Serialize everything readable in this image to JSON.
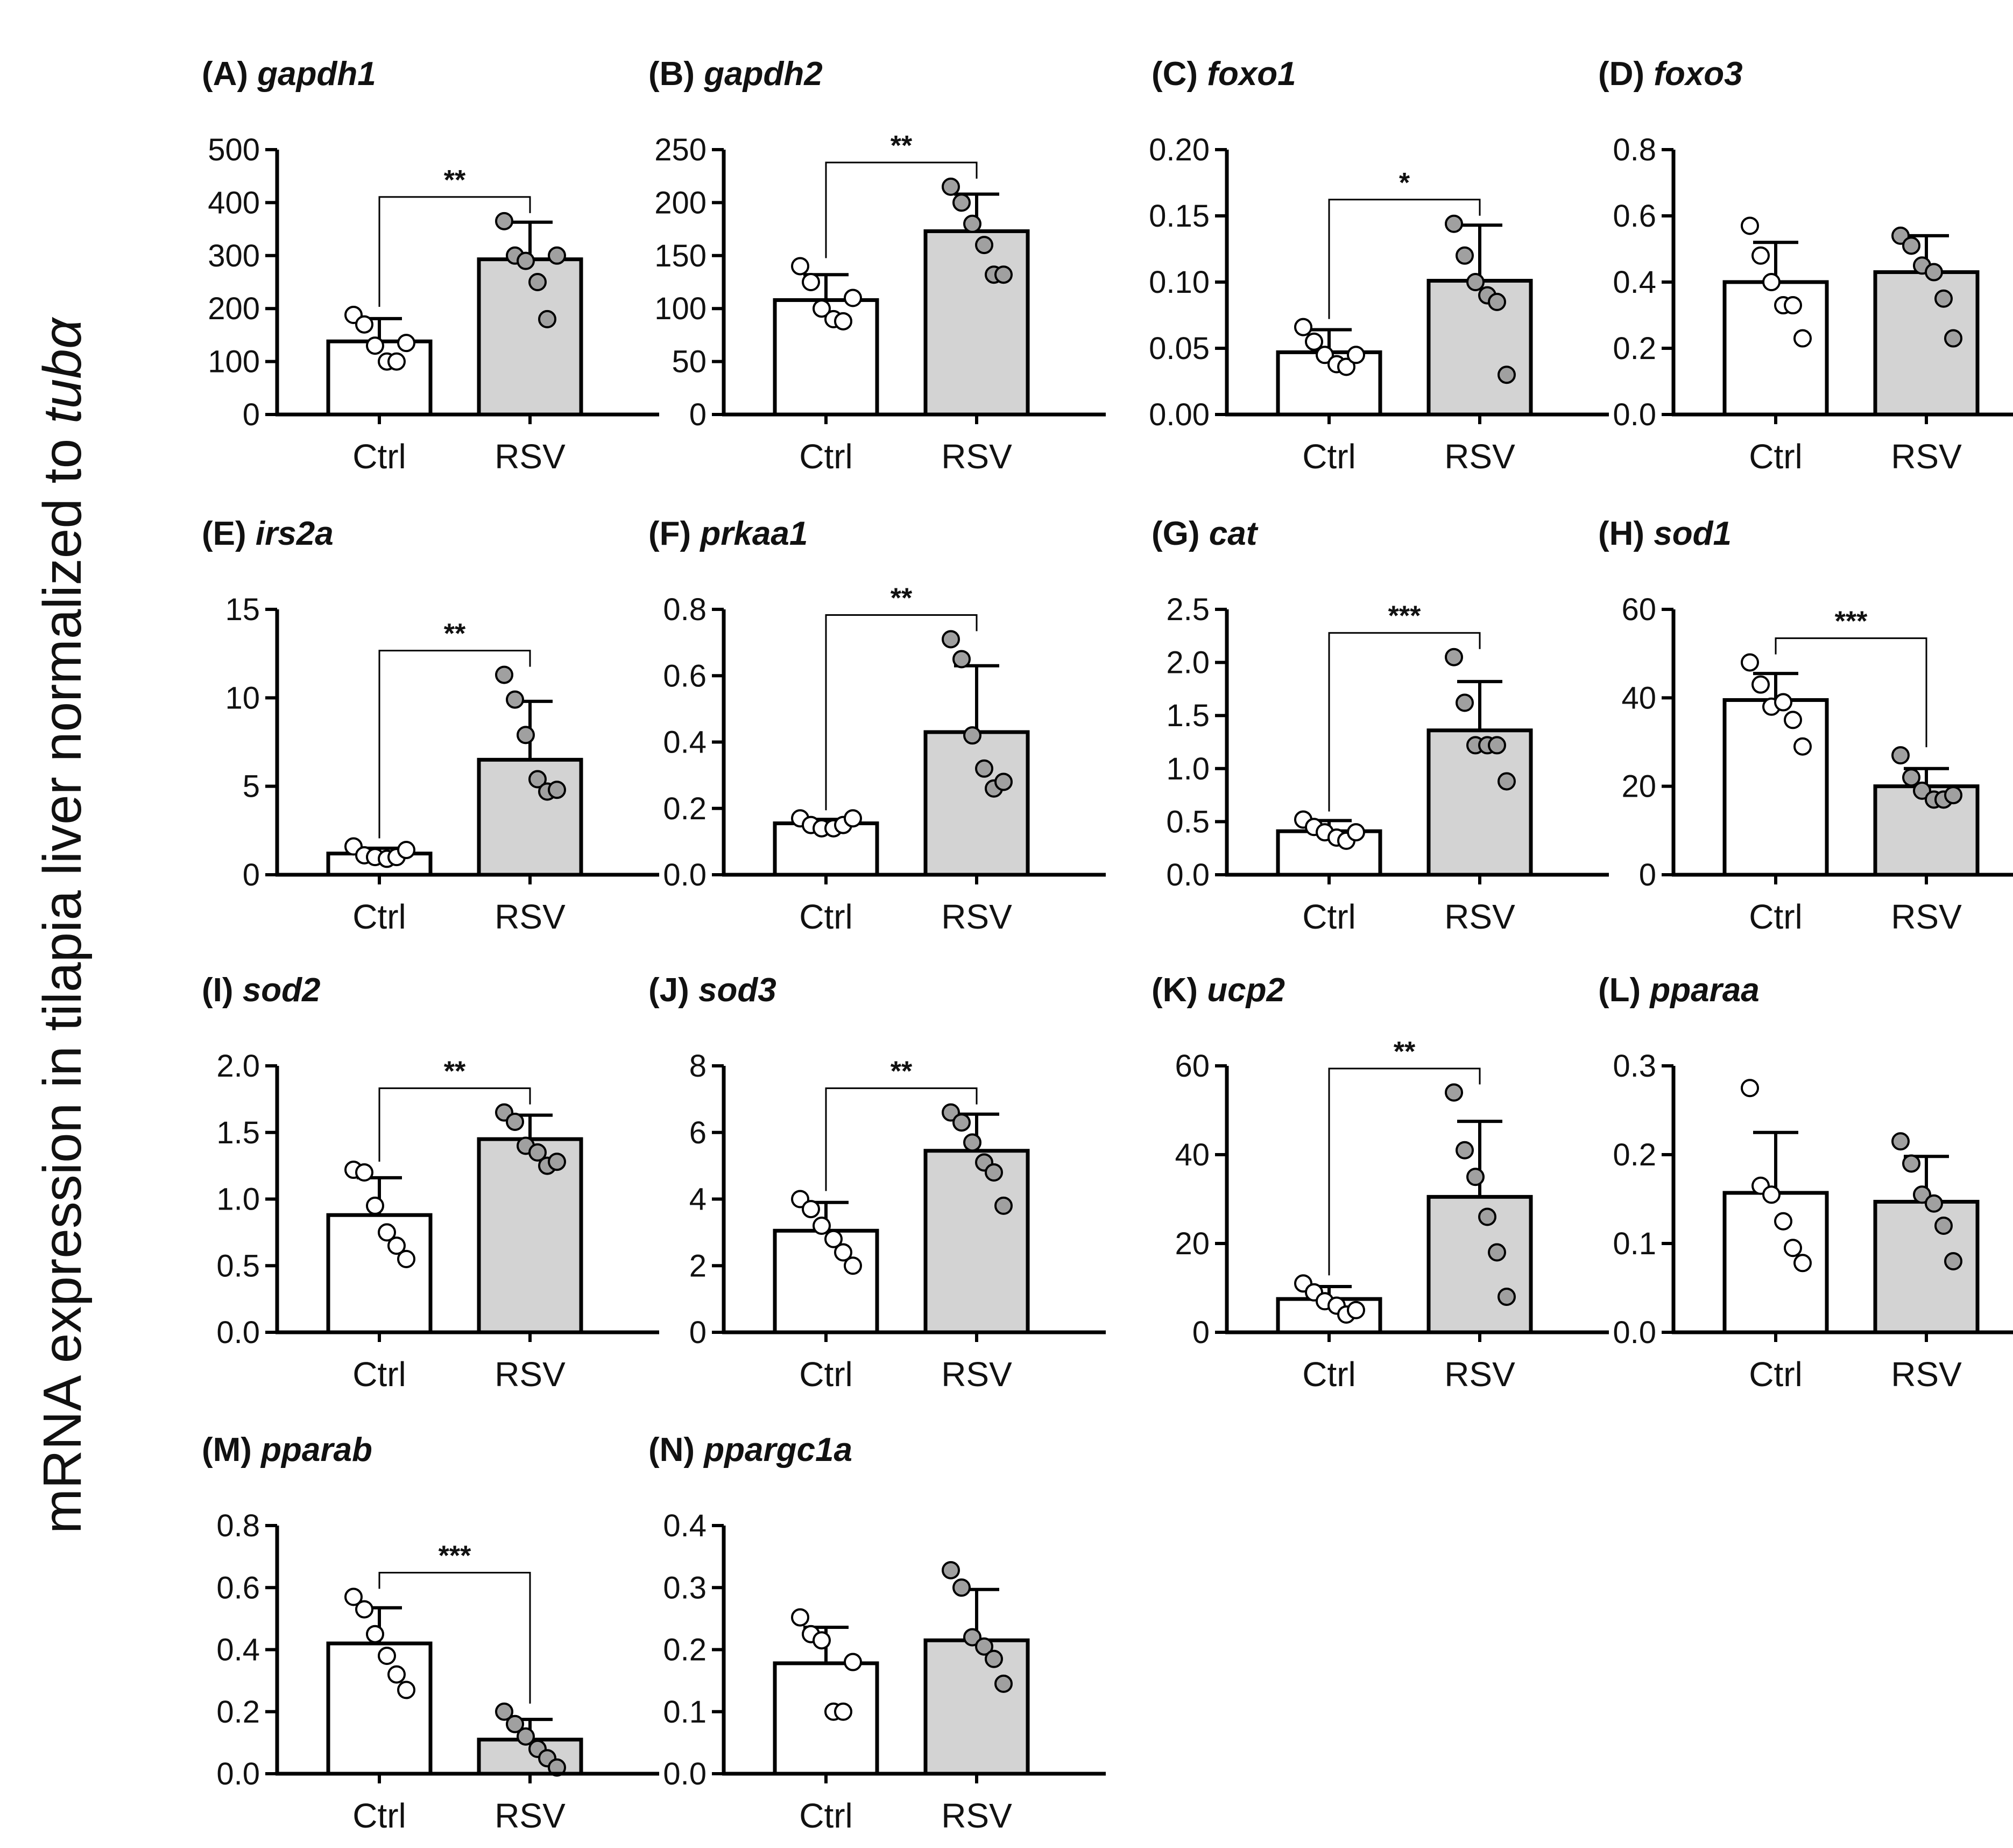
{
  "y_axis_label": {
    "prefix": "mRNA expression in tilapia liver normalized to ",
    "italic": "tubα"
  },
  "colors": {
    "ctrl_fill": "#ffffff",
    "rsv_fill": "#d3d3d3",
    "ctrl_point": "#ffffff",
    "rsv_point": "#a0a0a0"
  },
  "categories": [
    "Ctrl",
    "RSV"
  ],
  "chart_data": [
    {
      "type": "bar",
      "letter": "(A)",
      "gene": "gapdh1",
      "ylim": [
        0,
        500
      ],
      "ticks": [
        "0",
        "100",
        "200",
        "300",
        "400",
        "500"
      ],
      "categories": [
        "Ctrl",
        "RSV"
      ],
      "means": [
        138,
        293
      ],
      "sd": [
        43,
        70
      ],
      "points": [
        [
          188,
          170,
          130,
          100,
          100,
          135
        ],
        [
          365,
          300,
          290,
          250,
          180,
          300
        ]
      ],
      "significance": "**"
    },
    {
      "type": "bar",
      "letter": "(B)",
      "gene": "gapdh2",
      "ylim": [
        0,
        250
      ],
      "ticks": [
        "0",
        "50",
        "100",
        "150",
        "200",
        "250"
      ],
      "categories": [
        "Ctrl",
        "RSV"
      ],
      "means": [
        108,
        173
      ],
      "sd": [
        24,
        35
      ],
      "points": [
        [
          140,
          125,
          100,
          90,
          88,
          110
        ],
        [
          215,
          200,
          180,
          160,
          132,
          132
        ]
      ],
      "significance": "**"
    },
    {
      "type": "bar",
      "letter": "(C)",
      "gene": "foxo1",
      "ylim": [
        0,
        0.2
      ],
      "ticks": [
        "0.00",
        "0.05",
        "0.10",
        "0.15",
        "0.20"
      ],
      "categories": [
        "Ctrl",
        "RSV"
      ],
      "means": [
        0.047,
        0.101
      ],
      "sd": [
        0.017,
        0.042
      ],
      "points": [
        [
          0.066,
          0.055,
          0.045,
          0.038,
          0.036,
          0.045
        ],
        [
          0.144,
          0.12,
          0.1,
          0.09,
          0.085,
          0.03
        ]
      ],
      "significance": "*"
    },
    {
      "type": "bar",
      "letter": "(D)",
      "gene": "foxo3",
      "ylim": [
        0,
        0.8
      ],
      "ticks": [
        "0.0",
        "0.2",
        "0.4",
        "0.6",
        "0.8"
      ],
      "categories": [
        "Ctrl",
        "RSV"
      ],
      "means": [
        0.4,
        0.43
      ],
      "sd": [
        0.12,
        0.11
      ],
      "points": [
        [
          0.57,
          0.48,
          0.4,
          0.33,
          0.33,
          0.23
        ],
        [
          0.54,
          0.51,
          0.45,
          0.43,
          0.35,
          0.23
        ]
      ],
      "significance": ""
    },
    {
      "type": "bar",
      "letter": "(E)",
      "gene": "irs2a",
      "ylim": [
        0,
        15
      ],
      "ticks": [
        "0",
        "5",
        "10",
        "15"
      ],
      "categories": [
        "Ctrl",
        "RSV"
      ],
      "means": [
        1.2,
        6.5
      ],
      "sd": [
        0.3,
        3.3
      ],
      "points": [
        [
          1.6,
          1.1,
          1.0,
          0.9,
          1.0,
          1.4
        ],
        [
          11.3,
          9.9,
          7.9,
          5.4,
          4.7,
          4.8
        ]
      ],
      "significance": "**"
    },
    {
      "type": "bar",
      "letter": "(F)",
      "gene": "prkaa1",
      "ylim": [
        0,
        0.8
      ],
      "ticks": [
        "0.0",
        "0.2",
        "0.4",
        "0.6",
        "0.8"
      ],
      "categories": [
        "Ctrl",
        "RSV"
      ],
      "means": [
        0.155,
        0.43
      ],
      "sd": [
        0.012,
        0.2
      ],
      "points": [
        [
          0.17,
          0.15,
          0.14,
          0.14,
          0.15,
          0.17
        ],
        [
          0.71,
          0.65,
          0.42,
          0.32,
          0.26,
          0.28
        ]
      ],
      "significance": "**"
    },
    {
      "type": "bar",
      "letter": "(G)",
      "gene": "cat",
      "ylim": [
        0,
        2.5
      ],
      "ticks": [
        "0.0",
        "0.5",
        "1.0",
        "1.5",
        "2.0",
        "2.5"
      ],
      "categories": [
        "Ctrl",
        "RSV"
      ],
      "means": [
        0.41,
        1.36
      ],
      "sd": [
        0.1,
        0.46
      ],
      "points": [
        [
          0.52,
          0.45,
          0.4,
          0.35,
          0.32,
          0.4
        ],
        [
          2.05,
          1.62,
          1.22,
          1.22,
          1.22,
          0.88
        ]
      ],
      "significance": "***"
    },
    {
      "type": "bar",
      "letter": "(H)",
      "gene": "sod1",
      "ylim": [
        0,
        60
      ],
      "ticks": [
        "0",
        "20",
        "40",
        "60"
      ],
      "categories": [
        "Ctrl",
        "RSV"
      ],
      "means": [
        39.5,
        20.0
      ],
      "sd": [
        6.0,
        4.0
      ],
      "points": [
        [
          48,
          43,
          38,
          39,
          35,
          29
        ],
        [
          27,
          22,
          19,
          17,
          17,
          18
        ]
      ],
      "significance": "***"
    },
    {
      "type": "bar",
      "letter": "(I)",
      "gene": "sod2",
      "ylim": [
        0,
        2.0
      ],
      "ticks": [
        "0.0",
        "0.5",
        "1.0",
        "1.5",
        "2.0"
      ],
      "categories": [
        "Ctrl",
        "RSV"
      ],
      "means": [
        0.88,
        1.45
      ],
      "sd": [
        0.28,
        0.18
      ],
      "points": [
        [
          1.22,
          1.2,
          0.95,
          0.75,
          0.65,
          0.55
        ],
        [
          1.65,
          1.58,
          1.4,
          1.35,
          1.25,
          1.28
        ]
      ],
      "significance": "**"
    },
    {
      "type": "bar",
      "letter": "(J)",
      "gene": "sod3",
      "ylim": [
        0,
        8
      ],
      "ticks": [
        "0",
        "2",
        "4",
        "6",
        "8"
      ],
      "categories": [
        "Ctrl",
        "RSV"
      ],
      "means": [
        3.05,
        5.45
      ],
      "sd": [
        0.85,
        1.1
      ],
      "points": [
        [
          4.0,
          3.7,
          3.2,
          2.8,
          2.4,
          2.0
        ],
        [
          6.6,
          6.3,
          5.7,
          5.1,
          4.8,
          3.8
        ]
      ],
      "significance": "**"
    },
    {
      "type": "bar",
      "letter": "(K)",
      "gene": "ucp2",
      "ylim": [
        0,
        60
      ],
      "ticks": [
        "0",
        "20",
        "40",
        "60"
      ],
      "categories": [
        "Ctrl",
        "RSV"
      ],
      "means": [
        7.5,
        30.5
      ],
      "sd": [
        2.8,
        17.0
      ],
      "points": [
        [
          11,
          9,
          7,
          6,
          4,
          5
        ],
        [
          54,
          41,
          35,
          26,
          18,
          8
        ]
      ],
      "significance": "**"
    },
    {
      "type": "bar",
      "letter": "(L)",
      "gene": "pparaa",
      "ylim": [
        0,
        0.3
      ],
      "ticks": [
        "0.0",
        "0.1",
        "0.2",
        "0.3"
      ],
      "categories": [
        "Ctrl",
        "RSV"
      ],
      "means": [
        0.157,
        0.147
      ],
      "sd": [
        0.068,
        0.051
      ],
      "points": [
        [
          0.275,
          0.165,
          0.155,
          0.125,
          0.095,
          0.078
        ],
        [
          0.215,
          0.19,
          0.155,
          0.145,
          0.12,
          0.08
        ]
      ],
      "significance": ""
    },
    {
      "type": "bar",
      "letter": "(M)",
      "gene": "pparab",
      "ylim": [
        0,
        0.8
      ],
      "ticks": [
        "0.0",
        "0.2",
        "0.4",
        "0.6",
        "0.8"
      ],
      "categories": [
        "Ctrl",
        "RSV"
      ],
      "means": [
        0.42,
        0.11
      ],
      "sd": [
        0.115,
        0.065
      ],
      "points": [
        [
          0.57,
          0.53,
          0.45,
          0.38,
          0.32,
          0.27
        ],
        [
          0.2,
          0.16,
          0.12,
          0.08,
          0.05,
          0.02
        ]
      ],
      "significance": "***"
    },
    {
      "type": "bar",
      "letter": "(N)",
      "gene": "ppargc1a",
      "ylim": [
        0,
        0.4
      ],
      "ticks": [
        "0.0",
        "0.1",
        "0.2",
        "0.3",
        "0.4"
      ],
      "categories": [
        "Ctrl",
        "RSV"
      ],
      "means": [
        0.178,
        0.215
      ],
      "sd": [
        0.058,
        0.082
      ],
      "points": [
        [
          0.252,
          0.225,
          0.215,
          0.1,
          0.1,
          0.18
        ],
        [
          0.328,
          0.3,
          0.22,
          0.205,
          0.185,
          0.145
        ]
      ],
      "significance": ""
    }
  ]
}
